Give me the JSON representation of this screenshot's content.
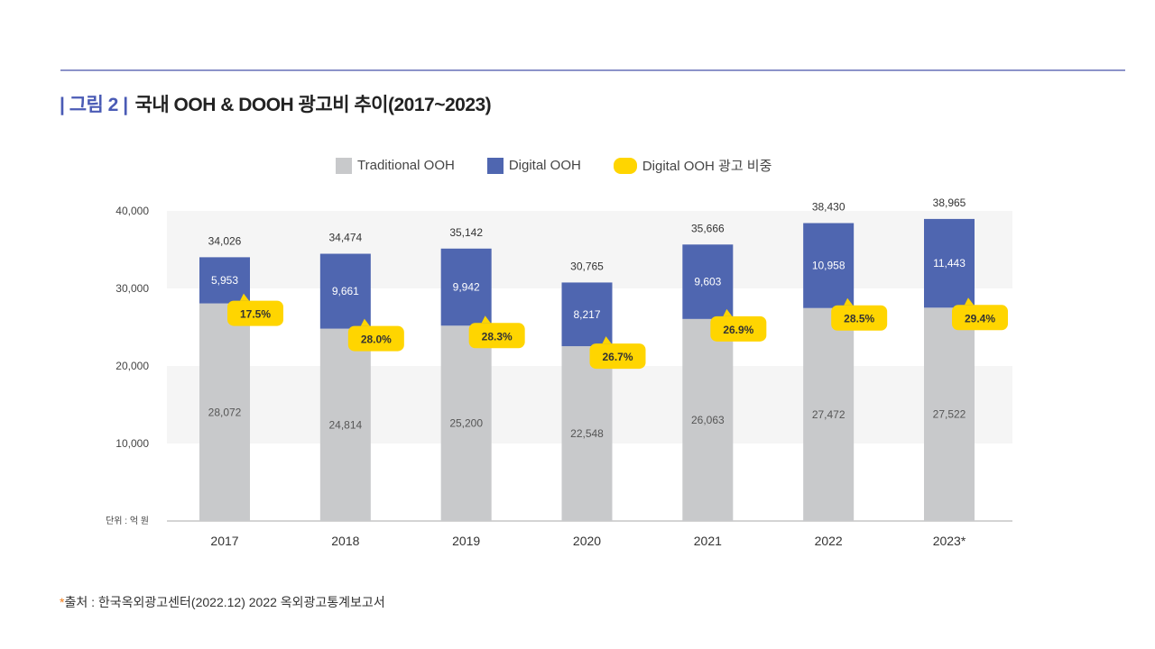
{
  "title": {
    "figure_label": "| 그림 2 |",
    "text": "국내 OOH & DOOH 광고비 추이(2017~2023)"
  },
  "legend": {
    "traditional": "Traditional OOH",
    "digital": "Digital OOH",
    "share": "Digital OOH 광고 비중"
  },
  "source": {
    "marker": "*",
    "text": "출처 : 한국옥외광고센터(2022.12) 2022 옥외광고통계보고서"
  },
  "chart_data": {
    "type": "bar",
    "stacked": true,
    "categories": [
      "2017",
      "2018",
      "2019",
      "2020",
      "2021",
      "2022",
      "2023*"
    ],
    "series": [
      {
        "name": "Traditional OOH",
        "color": "#c8c9cb",
        "values": [
          28072,
          24814,
          25200,
          22548,
          26063,
          27472,
          27522
        ],
        "labels": [
          "28,072",
          "24,814",
          "25,200",
          "22,548",
          "26,063",
          "27,472",
          "27,522"
        ]
      },
      {
        "name": "Digital OOH",
        "color": "#4f66b0",
        "values": [
          5953,
          9661,
          9942,
          8217,
          9603,
          10958,
          11443
        ],
        "labels": [
          "5,953",
          "9,661",
          "9,942",
          "8,217",
          "9,603",
          "10,958",
          "11,443"
        ]
      }
    ],
    "totals": [
      34026,
      34474,
      35142,
      30765,
      35666,
      38430,
      38965
    ],
    "total_labels": [
      "34,026",
      "34,474",
      "35,142",
      "30,765",
      "35,666",
      "38,430",
      "38,965"
    ],
    "share": {
      "name": "Digital OOH 광고 비중",
      "color": "#ffd500",
      "values": [
        17.5,
        28.0,
        28.3,
        26.7,
        26.9,
        28.5,
        29.4
      ],
      "labels": [
        "17.5%",
        "28.0%",
        "28.3%",
        "26.7%",
        "26.9%",
        "28.5%",
        "29.4%"
      ]
    },
    "yticks": [
      "10,000",
      "20,000",
      "30,000",
      "40,000"
    ],
    "ytick_values": [
      10000,
      20000,
      30000,
      40000
    ],
    "ylim": [
      0,
      40000
    ],
    "unit_label": "단위 : 억 원",
    "legend_position": "top",
    "grid": "alternating bands"
  }
}
